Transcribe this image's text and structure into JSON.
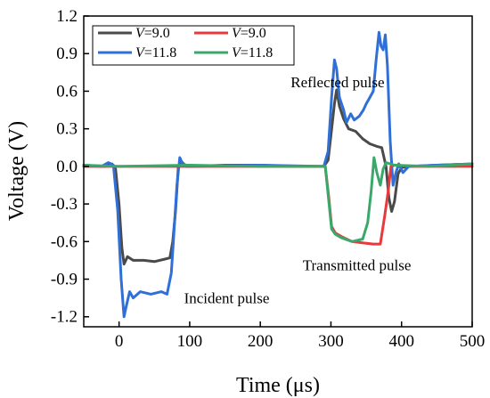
{
  "chart_data": {
    "type": "line",
    "xlabel": "Time (μs)",
    "ylabel": "Voltage (V)",
    "xlim": [
      -50,
      500
    ],
    "ylim": [
      -1.28,
      1.2
    ],
    "xticks": [
      0,
      100,
      200,
      300,
      400,
      500
    ],
    "yticks": [
      1.2,
      0.9,
      0.6,
      0.3,
      0.0,
      -0.3,
      -0.6,
      -0.9,
      -1.2
    ],
    "xtick_labels": [
      "0",
      "100",
      "200",
      "300",
      "400",
      "500"
    ],
    "ytick_labels": [
      "1.2",
      "0.9",
      "0.6",
      "0.3",
      "0.0",
      "-0.3",
      "-0.6",
      "-0.9",
      "-1.2"
    ],
    "annotations": [
      {
        "text": "Reflected pulse",
        "x": 243,
        "y": 0.63
      },
      {
        "text": "Transmitted pulse",
        "x": 260,
        "y": -0.83
      },
      {
        "text": "Incident pulse",
        "x": 92,
        "y": -1.09
      }
    ],
    "legend": {
      "placement": "top-left",
      "prefix": "V",
      "entries": [
        {
          "label": "=9.0",
          "color": "#4a4a4a"
        },
        {
          "label": "=9.0",
          "color": "#e8393d"
        },
        {
          "label": "=11.8",
          "color": "#2f6fd6"
        },
        {
          "label": "=11.8",
          "color": "#3aa86a"
        }
      ]
    },
    "series": [
      {
        "name": "V=9.0 (incident/reflected)",
        "color": "#4a4a4a",
        "points": [
          [
            -50,
            0.01
          ],
          [
            -20,
            0.0
          ],
          [
            -10,
            0.02
          ],
          [
            -5,
            -0.02
          ],
          [
            0,
            -0.3
          ],
          [
            4,
            -0.65
          ],
          [
            7,
            -0.78
          ],
          [
            12,
            -0.72
          ],
          [
            20,
            -0.75
          ],
          [
            35,
            -0.75
          ],
          [
            50,
            -0.76
          ],
          [
            65,
            -0.74
          ],
          [
            72,
            -0.73
          ],
          [
            76,
            -0.6
          ],
          [
            80,
            -0.35
          ],
          [
            84,
            0.0
          ],
          [
            88,
            0.04
          ],
          [
            95,
            0.0
          ],
          [
            150,
            0.01
          ],
          [
            200,
            0.01
          ],
          [
            250,
            0.0
          ],
          [
            290,
            0.0
          ],
          [
            296,
            0.05
          ],
          [
            300,
            0.25
          ],
          [
            305,
            0.5
          ],
          [
            308,
            0.61
          ],
          [
            312,
            0.48
          ],
          [
            318,
            0.38
          ],
          [
            325,
            0.3
          ],
          [
            335,
            0.28
          ],
          [
            345,
            0.22
          ],
          [
            355,
            0.18
          ],
          [
            365,
            0.16
          ],
          [
            372,
            0.15
          ],
          [
            378,
            0.0
          ],
          [
            382,
            -0.25
          ],
          [
            386,
            -0.36
          ],
          [
            390,
            -0.28
          ],
          [
            395,
            -0.06
          ],
          [
            400,
            -0.01
          ],
          [
            410,
            0.0
          ],
          [
            450,
            0.01
          ],
          [
            500,
            0.02
          ]
        ]
      },
      {
        "name": "V=11.8 (incident/reflected)",
        "color": "#2f6fd6",
        "points": [
          [
            -50,
            0.01
          ],
          [
            -25,
            0.0
          ],
          [
            -15,
            0.03
          ],
          [
            -8,
            0.01
          ],
          [
            -2,
            -0.35
          ],
          [
            3,
            -0.9
          ],
          [
            7,
            -1.2
          ],
          [
            10,
            -1.12
          ],
          [
            15,
            -1.0
          ],
          [
            20,
            -1.05
          ],
          [
            30,
            -1.0
          ],
          [
            45,
            -1.02
          ],
          [
            60,
            -1.0
          ],
          [
            68,
            -1.02
          ],
          [
            74,
            -0.85
          ],
          [
            78,
            -0.5
          ],
          [
            82,
            -0.15
          ],
          [
            86,
            0.07
          ],
          [
            90,
            0.02
          ],
          [
            100,
            0.0
          ],
          [
            200,
            0.01
          ],
          [
            290,
            0.0
          ],
          [
            296,
            0.12
          ],
          [
            301,
            0.55
          ],
          [
            305,
            0.85
          ],
          [
            308,
            0.78
          ],
          [
            312,
            0.55
          ],
          [
            318,
            0.45
          ],
          [
            322,
            0.35
          ],
          [
            328,
            0.42
          ],
          [
            333,
            0.37
          ],
          [
            340,
            0.4
          ],
          [
            346,
            0.45
          ],
          [
            350,
            0.5
          ],
          [
            355,
            0.55
          ],
          [
            360,
            0.6
          ],
          [
            364,
            0.85
          ],
          [
            368,
            1.07
          ],
          [
            371,
            0.96
          ],
          [
            374,
            0.93
          ],
          [
            377,
            1.05
          ],
          [
            380,
            0.8
          ],
          [
            384,
            0.2
          ],
          [
            388,
            -0.15
          ],
          [
            392,
            -0.05
          ],
          [
            396,
            0.02
          ],
          [
            402,
            -0.05
          ],
          [
            410,
            0.0
          ],
          [
            450,
            0.01
          ],
          [
            500,
            0.02
          ]
        ]
      },
      {
        "name": "V=9.0 (transmitted)",
        "color": "#e8393d",
        "points": [
          [
            -50,
            0.0
          ],
          [
            0,
            0.0
          ],
          [
            100,
            0.0
          ],
          [
            200,
            0.0
          ],
          [
            292,
            0.0
          ],
          [
            297,
            -0.25
          ],
          [
            301,
            -0.48
          ],
          [
            306,
            -0.53
          ],
          [
            315,
            -0.56
          ],
          [
            330,
            -0.6
          ],
          [
            345,
            -0.61
          ],
          [
            360,
            -0.62
          ],
          [
            370,
            -0.62
          ],
          [
            376,
            -0.4
          ],
          [
            381,
            -0.2
          ],
          [
            385,
            0.0
          ],
          [
            390,
            0.01
          ],
          [
            420,
            0.0
          ],
          [
            500,
            0.0
          ]
        ]
      },
      {
        "name": "V=11.8 (transmitted)",
        "color": "#3aa86a",
        "points": [
          [
            -50,
            0.01
          ],
          [
            0,
            0.0
          ],
          [
            100,
            0.01
          ],
          [
            200,
            0.0
          ],
          [
            292,
            0.0
          ],
          [
            297,
            -0.28
          ],
          [
            301,
            -0.5
          ],
          [
            306,
            -0.54
          ],
          [
            315,
            -0.57
          ],
          [
            330,
            -0.6
          ],
          [
            345,
            -0.58
          ],
          [
            352,
            -0.45
          ],
          [
            357,
            -0.2
          ],
          [
            361,
            0.07
          ],
          [
            365,
            -0.05
          ],
          [
            370,
            -0.15
          ],
          [
            374,
            -0.02
          ],
          [
            378,
            0.03
          ],
          [
            390,
            0.01
          ],
          [
            440,
            0.0
          ],
          [
            500,
            0.02
          ]
        ]
      }
    ]
  }
}
